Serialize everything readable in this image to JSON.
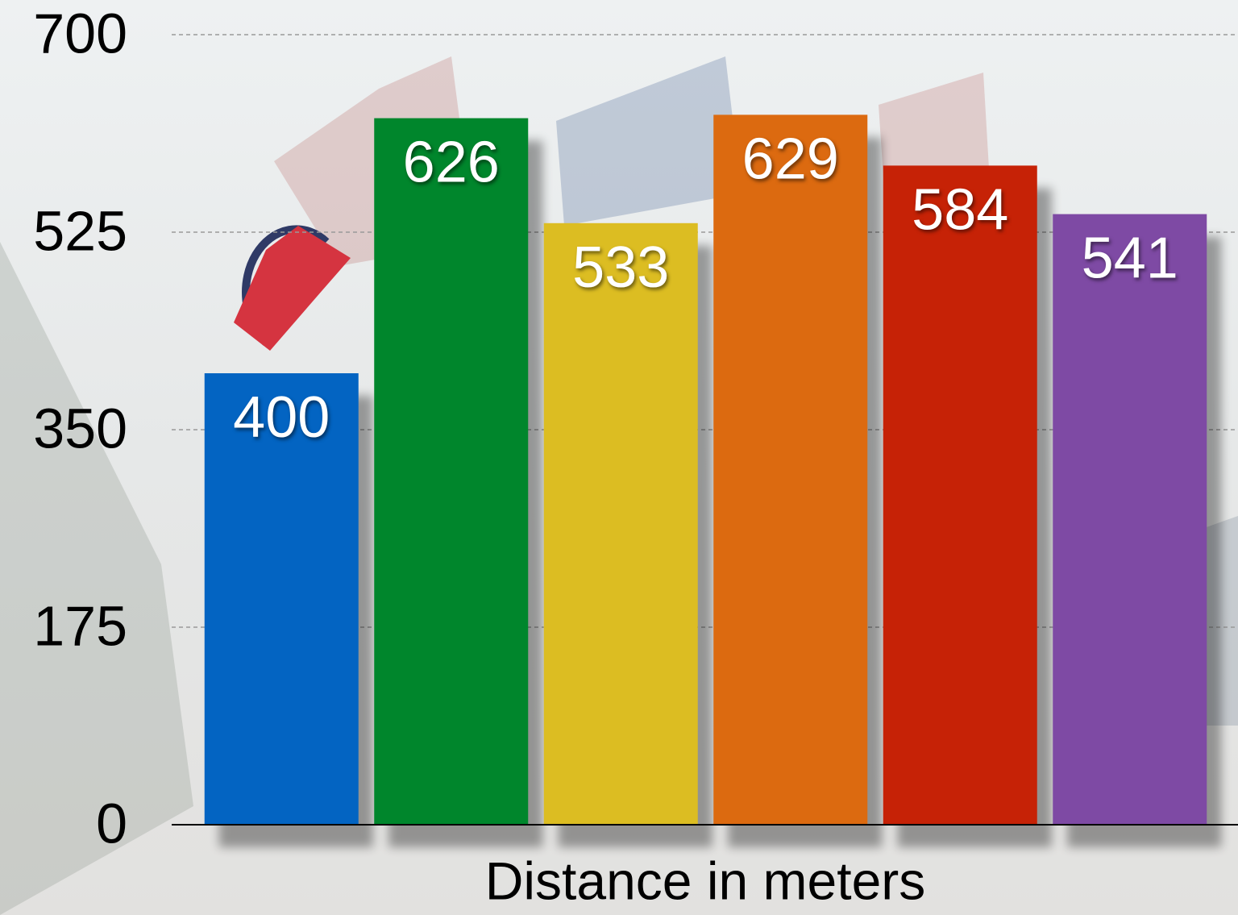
{
  "chart_data": {
    "type": "bar",
    "x_label": "Distance in meters",
    "categories": [
      null,
      null,
      null,
      null,
      null,
      null
    ],
    "values": [
      400,
      626,
      533,
      629,
      584,
      541
    ],
    "colors": [
      "#0364c2",
      "#00862c",
      "#dcbd22",
      "#dc6a10",
      "#c62206",
      "#7e4aa4"
    ],
    "ylim": [
      0,
      700
    ],
    "yticks": [
      0,
      175,
      350,
      525,
      700
    ],
    "grid": true
  }
}
